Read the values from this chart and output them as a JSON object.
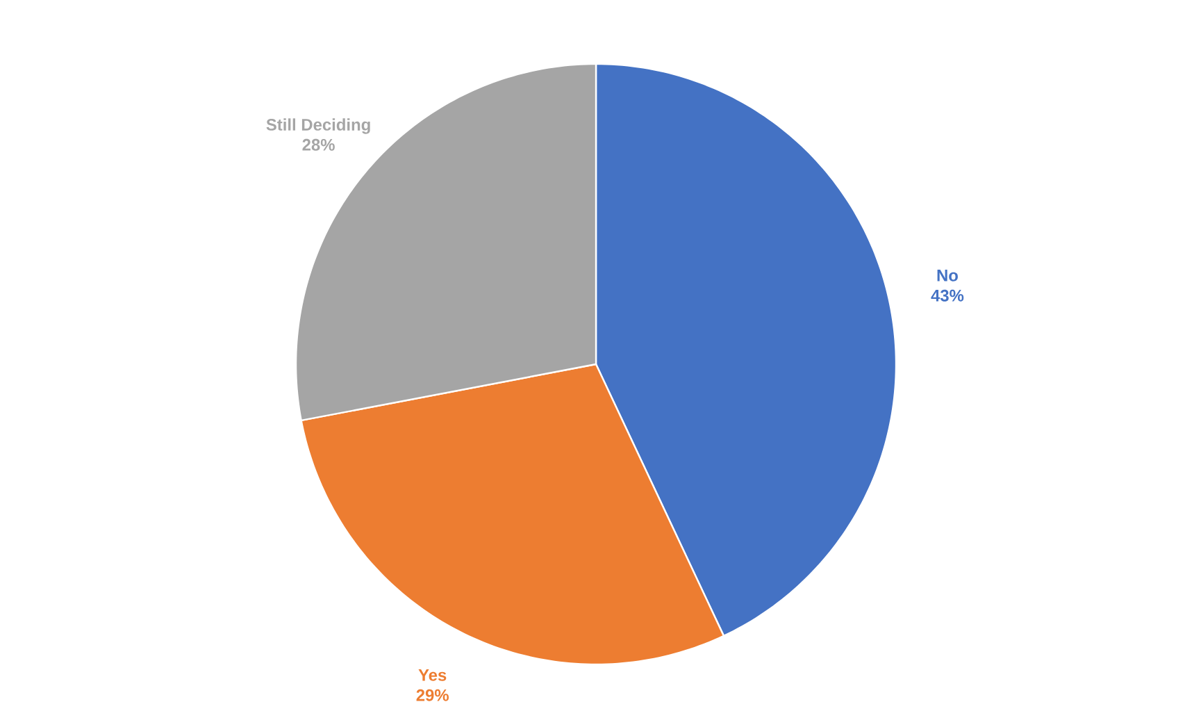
{
  "chart_data": {
    "type": "pie",
    "categories": [
      "No",
      "Yes",
      "Still Deciding"
    ],
    "values": [
      43,
      29,
      28
    ],
    "value_labels": [
      "43%",
      "29%",
      "28%"
    ],
    "colors": [
      "#4472c4",
      "#ed7d31",
      "#a5a5a5"
    ]
  }
}
